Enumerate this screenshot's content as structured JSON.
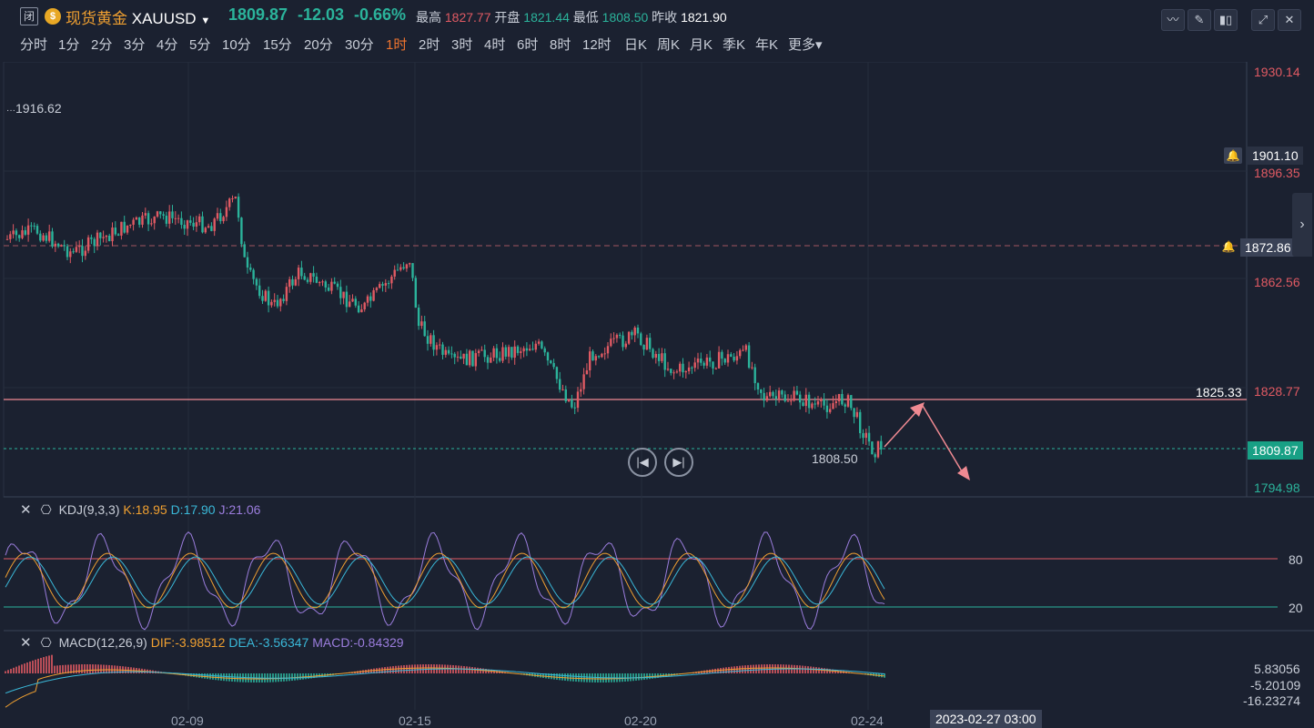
{
  "header": {
    "close_badge": "闭",
    "name": "现货黄金",
    "symbol": "XAUUSD",
    "price": "1809.87",
    "change": "-12.03",
    "change_pct": "-0.66%",
    "high_label": "最高",
    "high": "1827.77",
    "open_label": "开盘",
    "open": "1821.44",
    "low_label": "最低",
    "low": "1808.50",
    "prev_label": "昨收",
    "prev": "1821.90"
  },
  "periods": [
    "分时",
    "1分",
    "2分",
    "3分",
    "4分",
    "5分",
    "10分",
    "15分",
    "20分",
    "30分",
    "1时",
    "2时",
    "3时",
    "4时",
    "6时",
    "8时",
    "12时",
    "日K",
    "周K",
    "月K",
    "季K",
    "年K",
    "更多"
  ],
  "active_period": "1时",
  "toolbar": [
    "indicator-icon",
    "draw-icon",
    "candle-icon",
    "expand-icon",
    "close-icon"
  ],
  "main_chart": {
    "y_labels": [
      "1930.14",
      "1896.35",
      "1862.56",
      "1828.77",
      "1794.98"
    ],
    "top_label": "1916.62",
    "alert_price_1": "1901.10",
    "alert_price_2": "1872.86",
    "hline_label": "1825.33",
    "current_price": "1809.87",
    "low_label": "1808.50",
    "x_labels": [
      "02-09",
      "02-15",
      "02-20",
      "02-24"
    ],
    "crosshair_time": "2023-02-27 03:00"
  },
  "kdj": {
    "name": "KDJ(9,3,3)",
    "k": "K:18.95",
    "d": "D:17.90",
    "j": "J:21.06",
    "levels": [
      "80",
      "20"
    ]
  },
  "macd": {
    "name": "MACD(12,26,9)",
    "dif": "DIF:-3.98512",
    "dea": "DEA:-3.56347",
    "macd": "MACD:-0.84329",
    "y_labels": [
      "5.83056",
      "-5.20109",
      "-16.23274"
    ]
  },
  "colors": {
    "up": "#e05a63",
    "down": "#2bb39b",
    "bg": "#1b2130"
  }
}
